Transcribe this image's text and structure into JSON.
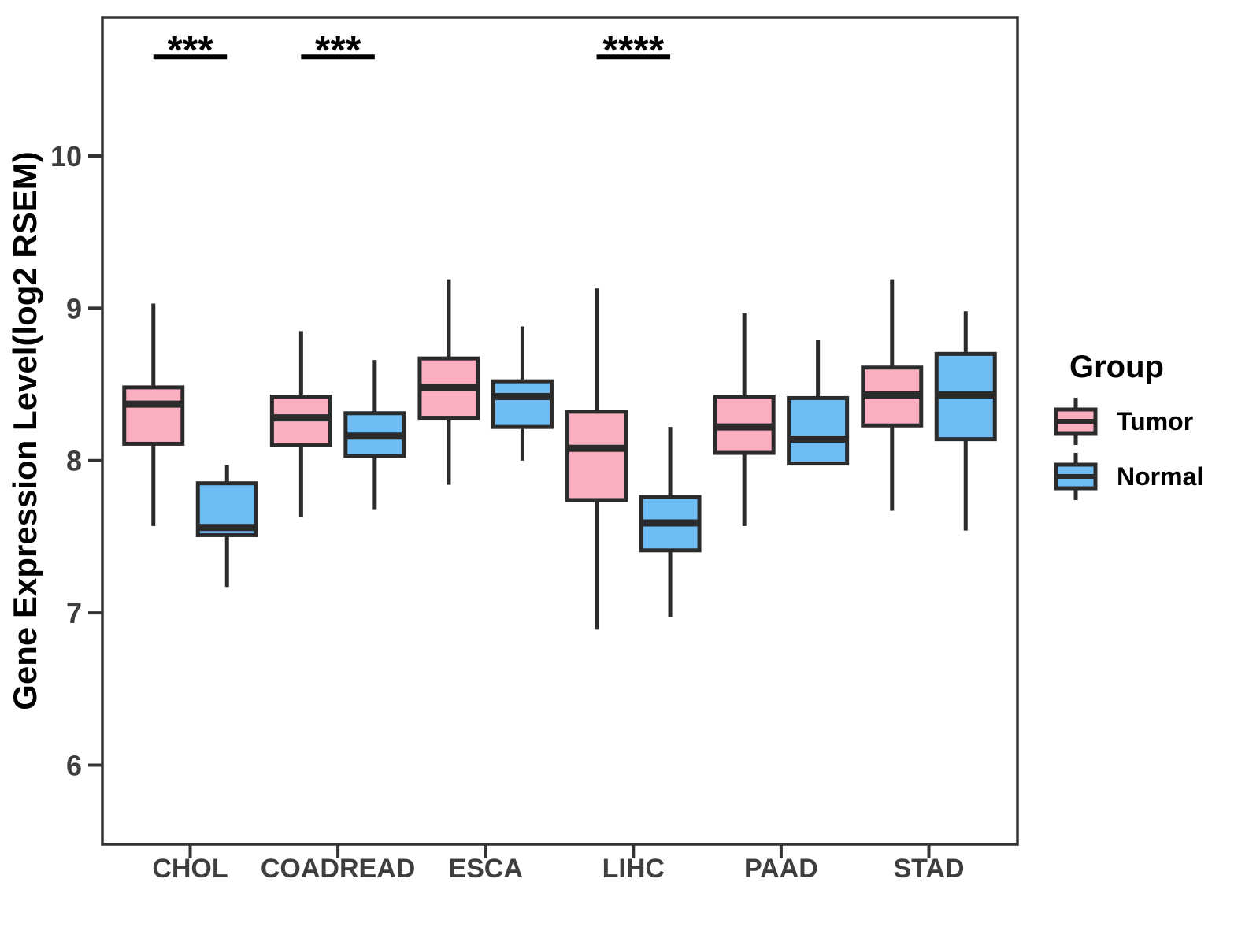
{
  "chart_data": {
    "type": "grouped_boxplot",
    "title": "",
    "xlabel": "",
    "ylabel": "Gene Expression Level(log2 RSEM)",
    "categories": [
      "CHOL",
      "COADREAD",
      "ESCA",
      "LIHC",
      "PAAD",
      "STAD"
    ],
    "y_ticks": [
      6,
      7,
      8,
      9,
      10
    ],
    "ylim": [
      5.48,
      10.91
    ],
    "grid": false,
    "legend": {
      "title": "Group",
      "position": "right",
      "entries": [
        {
          "label": "Tumor",
          "color": "#FAAEC0"
        },
        {
          "label": "Normal",
          "color": "#6DBDF4"
        }
      ]
    },
    "series": [
      {
        "name": "Tumor",
        "color": "#FAAEC0",
        "boxes": [
          {
            "category": "CHOL",
            "min": 7.57,
            "q1": 8.11,
            "median": 8.37,
            "q3": 8.48,
            "max": 9.03
          },
          {
            "category": "COADREAD",
            "min": 7.63,
            "q1": 8.1,
            "median": 8.28,
            "q3": 8.42,
            "max": 8.85
          },
          {
            "category": "ESCA",
            "min": 7.84,
            "q1": 8.28,
            "median": 8.48,
            "q3": 8.67,
            "max": 9.19
          },
          {
            "category": "LIHC",
            "min": 6.89,
            "q1": 7.74,
            "median": 8.08,
            "q3": 8.32,
            "max": 9.13
          },
          {
            "category": "PAAD",
            "min": 7.57,
            "q1": 8.05,
            "median": 8.22,
            "q3": 8.42,
            "max": 8.97
          },
          {
            "category": "STAD",
            "min": 7.67,
            "q1": 8.23,
            "median": 8.43,
            "q3": 8.61,
            "max": 9.19
          }
        ]
      },
      {
        "name": "Normal",
        "color": "#6DBDF4",
        "boxes": [
          {
            "category": "CHOL",
            "min": 7.17,
            "q1": 7.51,
            "median": 7.56,
            "q3": 7.85,
            "max": 7.97
          },
          {
            "category": "COADREAD",
            "min": 7.68,
            "q1": 8.03,
            "median": 8.16,
            "q3": 8.31,
            "max": 8.66
          },
          {
            "category": "ESCA",
            "min": 8.0,
            "q1": 8.22,
            "median": 8.42,
            "q3": 8.52,
            "max": 8.88
          },
          {
            "category": "LIHC",
            "min": 6.97,
            "q1": 7.41,
            "median": 7.59,
            "q3": 7.76,
            "max": 8.22
          },
          {
            "category": "PAAD",
            "min": 7.97,
            "q1": 7.98,
            "median": 8.14,
            "q3": 8.41,
            "max": 8.79
          },
          {
            "category": "STAD",
            "min": 7.54,
            "q1": 8.14,
            "median": 8.43,
            "q3": 8.7,
            "max": 8.98
          }
        ]
      }
    ],
    "significance": [
      {
        "category": "CHOL",
        "label": "***",
        "bar_y": 10.65
      },
      {
        "category": "COADREAD",
        "label": "***",
        "bar_y": 10.65
      },
      {
        "category": "LIHC",
        "label": "****",
        "bar_y": 10.65
      }
    ],
    "colors": {
      "box_stroke": "#2B2B2B",
      "panel_border": "#333333",
      "axis_text": "#3E3E3E",
      "annotation": "#000000"
    }
  }
}
